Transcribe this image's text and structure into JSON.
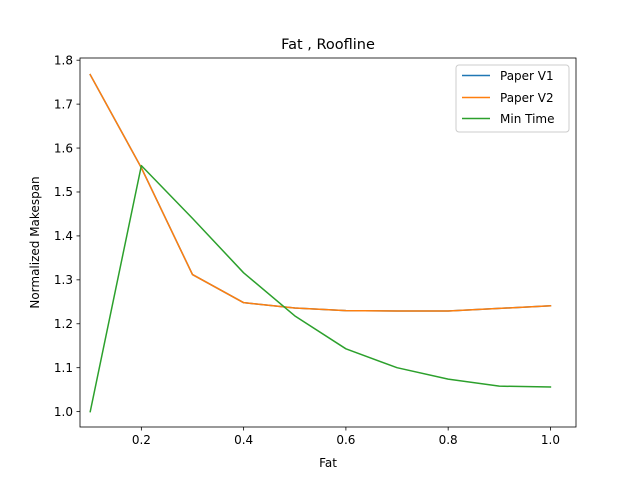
{
  "chart_data": {
    "type": "line",
    "title": "Fat , Roofline",
    "xlabel": "Fat",
    "ylabel": "Normalized Makespan",
    "xlim": [
      0.08,
      1.05
    ],
    "ylim": [
      0.965,
      1.805
    ],
    "xticks": [
      "0.2",
      "0.4",
      "0.6",
      "0.8",
      "1.0"
    ],
    "xtick_values": [
      0.2,
      0.4,
      0.6,
      0.8,
      1.0
    ],
    "yticks": [
      "1.0",
      "1.1",
      "1.2",
      "1.3",
      "1.4",
      "1.5",
      "1.6",
      "1.7",
      "1.8"
    ],
    "ytick_values": [
      1.0,
      1.1,
      1.2,
      1.3,
      1.4,
      1.5,
      1.6,
      1.7,
      1.8
    ],
    "grid": false,
    "legend_position": "top-right",
    "x": [
      0.1,
      0.2,
      0.3,
      0.4,
      0.5,
      0.6,
      0.7,
      0.8,
      0.9,
      1.0
    ],
    "series": [
      {
        "name": "Paper V1",
        "color": "#1f77b4",
        "values": [
          1.767,
          1.555,
          1.312,
          1.248,
          1.236,
          1.23,
          1.229,
          1.229,
          1.235,
          1.241
        ]
      },
      {
        "name": "Paper V2",
        "color": "#ff7f0e",
        "values": [
          1.767,
          1.555,
          1.312,
          1.248,
          1.236,
          1.23,
          1.229,
          1.229,
          1.235,
          1.241
        ]
      },
      {
        "name": "Min Time",
        "color": "#2ca02c",
        "values": [
          1.0,
          1.56,
          1.44,
          1.316,
          1.218,
          1.143,
          1.1,
          1.074,
          1.058,
          1.056
        ]
      }
    ]
  }
}
